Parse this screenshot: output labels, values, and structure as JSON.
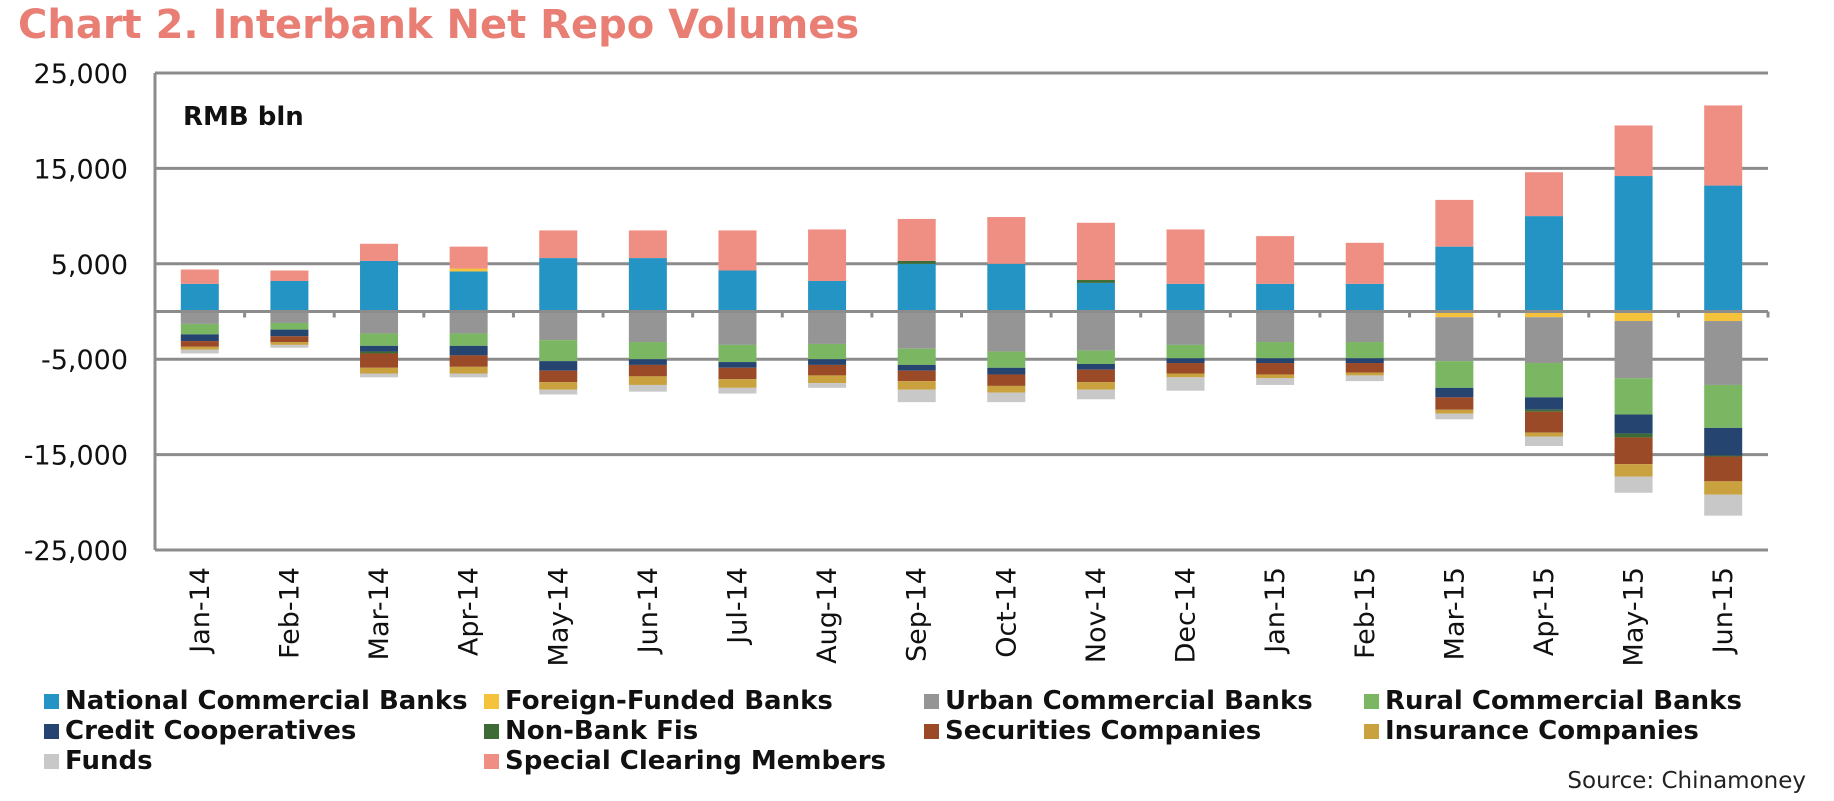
{
  "chart_data": {
    "type": "bar",
    "stacked": true,
    "title": "Chart 2. Interbank Net Repo Volumes",
    "unit_label": "RMB bln",
    "ylim": [
      -25000,
      25000
    ],
    "yticks": [
      25000,
      15000,
      5000,
      -5000,
      -15000,
      -25000
    ],
    "ytick_labels": [
      "25,000",
      "15,000",
      "5,000",
      "-5,000",
      "-15,000",
      "-25,000"
    ],
    "grid": true,
    "legend_position": "bottom",
    "categories": [
      "Jan-14",
      "Feb-14",
      "Mar-14",
      "Apr-14",
      "May-14",
      "Jun-14",
      "Jul-14",
      "Aug-14",
      "Sep-14",
      "Oct-14",
      "Nov-14",
      "Dec-14",
      "Jan-15",
      "Feb-15",
      "Mar-15",
      "Apr-15",
      "May-15",
      "Jun-15"
    ],
    "series": [
      {
        "name": "National Commercial Banks",
        "color": "#2494C4",
        "values": [
          2900,
          3200,
          5300,
          4200,
          5600,
          5600,
          4300,
          3200,
          5000,
          5000,
          3000,
          2900,
          2900,
          2900,
          6800,
          10000,
          14200,
          13200
        ]
      },
      {
        "name": "Foreign-Funded Banks",
        "color": "#F5C33B",
        "values": [
          0,
          0,
          0,
          300,
          -100,
          0,
          0,
          0,
          -100,
          0,
          -100,
          -100,
          0,
          0,
          -600,
          -600,
          -1000,
          -1000
        ]
      },
      {
        "name": "Urban Commercial Banks",
        "color": "#959595",
        "values": [
          -1300,
          -1200,
          -2300,
          -2300,
          -2900,
          -3200,
          -3500,
          -3400,
          -3800,
          -4200,
          -4000,
          -3400,
          -3200,
          -3200,
          -4600,
          -4800,
          -6000,
          -6700
        ]
      },
      {
        "name": "Rural Commercial Banks",
        "color": "#7BB662",
        "values": [
          -1100,
          -700,
          -1300,
          -1300,
          -2200,
          -1800,
          -1800,
          -1600,
          -1700,
          -1700,
          -1400,
          -1400,
          -1700,
          -1700,
          -2800,
          -3600,
          -3800,
          -4500
        ]
      },
      {
        "name": "Credit Cooperatives",
        "color": "#254470",
        "values": [
          -700,
          -700,
          -600,
          -1000,
          -1000,
          -600,
          -600,
          -600,
          -600,
          -700,
          -600,
          -500,
          -500,
          -500,
          -1000,
          -1300,
          -2000,
          -2900
        ]
      },
      {
        "name": "Non-Bank Fis",
        "color": "#3D6B35",
        "values": [
          0,
          0,
          -200,
          0,
          0,
          0,
          0,
          0,
          300,
          0,
          300,
          0,
          0,
          0,
          0,
          -200,
          -400,
          -100
        ]
      },
      {
        "name": "Securities Companies",
        "color": "#9B4A28",
        "values": [
          -600,
          -600,
          -1500,
          -1200,
          -1200,
          -1200,
          -1200,
          -1100,
          -1100,
          -1200,
          -1300,
          -1100,
          -1200,
          -1000,
          -1300,
          -2200,
          -2800,
          -2600
        ]
      },
      {
        "name": "Insurance Companies",
        "color": "#C9A13E",
        "values": [
          -300,
          -300,
          -600,
          -700,
          -800,
          -900,
          -900,
          -800,
          -900,
          -700,
          -800,
          -400,
          -400,
          -300,
          -400,
          -400,
          -1300,
          -1400
        ]
      },
      {
        "name": "Funds",
        "color": "#C8C8C8",
        "values": [
          -400,
          -300,
          -400,
          -400,
          -500,
          -700,
          -600,
          -500,
          -1300,
          -1000,
          -1000,
          -1400,
          -700,
          -600,
          -600,
          -1000,
          -1700,
          -2200
        ]
      },
      {
        "name": "Special Clearing Members",
        "color": "#EF8E83",
        "values": [
          1500,
          1100,
          1800,
          2300,
          2900,
          2900,
          4200,
          5400,
          4400,
          4900,
          6000,
          5700,
          5000,
          4300,
          4900,
          4600,
          5300,
          8400
        ]
      }
    ],
    "source": "Source: Chinamoney"
  }
}
